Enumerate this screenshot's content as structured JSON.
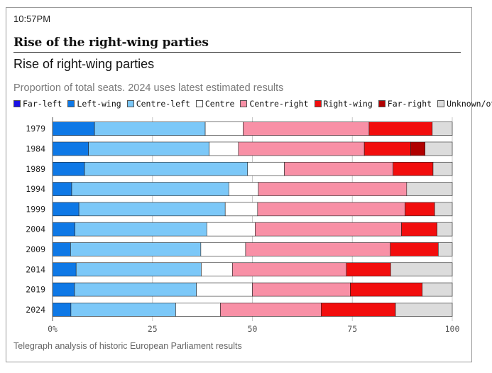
{
  "time": "10:57PM",
  "headline": "Rise of the right-wing parties",
  "colors": {
    "Far-left": "#1a12e6",
    "Left-wing": "#0e78e6",
    "Centre-left": "#7cc8f8",
    "Centre": "#ffffff",
    "Centre-right": "#f890a6",
    "Right-wing": "#f20d0d",
    "Far-right": "#b00000",
    "Unknown/other": "#dcdcdc"
  },
  "chart_data": {
    "type": "bar",
    "orientation": "horizontal",
    "stacked": true,
    "title": "Rise of right-wing parties",
    "subtitle": "Proportion of total seats. 2024 uses latest estimated results",
    "source": "Telegraph analysis of historic European Parliament results",
    "categories": [
      "1979",
      "1984",
      "1989",
      "1994",
      "1999",
      "2004",
      "2009",
      "2014",
      "2019",
      "2024"
    ],
    "xlim": [
      0,
      100
    ],
    "x_ticks": [
      "0%",
      "25",
      "50",
      "75",
      "100"
    ],
    "legend": [
      "Far-left",
      "Left-wing",
      "Centre-left",
      "Centre",
      "Centre-right",
      "Right-wing",
      "Far-right",
      "Unknown/other"
    ],
    "legend_position": "top",
    "series": [
      {
        "name": "Far-left",
        "values": [
          0,
          0,
          0,
          0,
          0,
          0,
          0,
          0,
          0,
          0
        ]
      },
      {
        "name": "Left-wing",
        "values": [
          10.5,
          9.0,
          8.0,
          4.8,
          6.6,
          5.6,
          4.5,
          5.9,
          5.5,
          4.6
        ]
      },
      {
        "name": "Centre-left",
        "values": [
          27.7,
          30.2,
          40.8,
          39.3,
          36.6,
          33.0,
          32.6,
          31.3,
          30.5,
          26.2
        ]
      },
      {
        "name": "Centre",
        "values": [
          9.5,
          7.3,
          9.2,
          7.4,
          8.1,
          12.1,
          11.2,
          7.8,
          14.0,
          11.2
        ]
      },
      {
        "name": "Centre-right",
        "values": [
          31.5,
          31.5,
          27.2,
          37.1,
          36.9,
          36.6,
          36.2,
          28.5,
          24.5,
          25.2
        ]
      },
      {
        "name": "Right-wing",
        "values": [
          15.8,
          11.6,
          10.0,
          0,
          7.4,
          8.9,
          12.0,
          11.1,
          18.0,
          18.6
        ]
      },
      {
        "name": "Far-right",
        "values": [
          0,
          3.6,
          0,
          0,
          0,
          0,
          0,
          0,
          0,
          0
        ]
      },
      {
        "name": "Unknown/other",
        "values": [
          5.0,
          6.8,
          4.8,
          11.4,
          4.4,
          3.8,
          3.5,
          15.4,
          7.5,
          14.2
        ]
      }
    ]
  }
}
